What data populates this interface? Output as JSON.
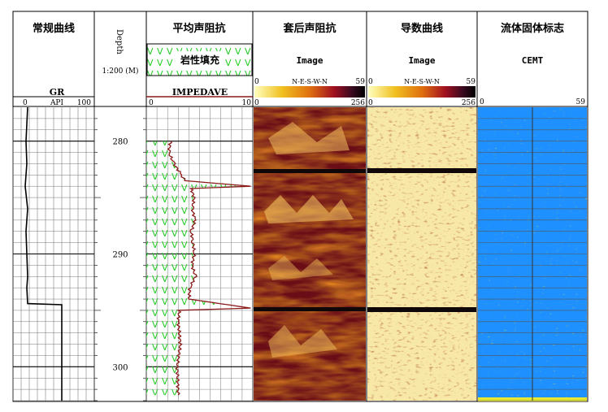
{
  "tracks": {
    "gr": {
      "title": "常规曲线",
      "curve": "GR",
      "unit": "API",
      "min": "0",
      "max": "100"
    },
    "depth": {
      "label": "Depth",
      "scale": "1:200 (M)",
      "ticks": [
        "280",
        "290",
        "300"
      ]
    },
    "impedance": {
      "title": "平均声阻抗",
      "fill_label": "岩性填充",
      "curve": "IMPEDAVE",
      "min": "0",
      "max": "10"
    },
    "cased_image": {
      "title": "套后声阻抗",
      "image": "Image",
      "orient": "N-E-S-W-N",
      "min": "0",
      "max": "59",
      "bar_min": "0",
      "bar_max": "256"
    },
    "derivative": {
      "title": "导数曲线",
      "image": "Image",
      "orient": "N-E-S-W-N",
      "min": "0",
      "max": "59",
      "bar_min": "0",
      "bar_max": "256"
    },
    "cement": {
      "title": "流体固体标志",
      "curve": "CEMT",
      "min": "0",
      "max": "59"
    }
  },
  "colors": {
    "grid": "#333333",
    "lithology_green": "#22cc22",
    "impedance_curve": "#8b1a1a",
    "cement_blue": "#1e90ff",
    "cement_yellow": "#e8e830"
  },
  "chart_data": {
    "type": "line",
    "depth_range": [
      277,
      303
    ],
    "gr_curve": {
      "name": "GR",
      "depth": [
        277,
        280,
        282,
        284,
        286,
        288,
        290,
        292,
        293,
        294.4,
        294.5,
        296,
        300,
        303
      ],
      "value": [
        18,
        16,
        17,
        15,
        18,
        16,
        17,
        18,
        17,
        18,
        60,
        60,
        60,
        60
      ]
    },
    "impedave_curve": {
      "name": "IMPEDAVE",
      "depth": [
        280,
        281,
        282,
        283,
        283.5,
        284,
        284.2,
        285,
        286,
        287,
        288,
        289,
        290,
        291,
        292,
        293,
        294,
        294.8,
        295,
        296,
        298,
        300,
        302.5
      ],
      "value": [
        2.3,
        2.1,
        2.6,
        3.3,
        3.6,
        9.8,
        4.2,
        4.5,
        4.3,
        4.6,
        4.2,
        4.4,
        4.5,
        4.3,
        4.6,
        4.1,
        4.0,
        9.8,
        3.1,
        3.0,
        3.2,
        2.9,
        3.0
      ]
    }
  }
}
